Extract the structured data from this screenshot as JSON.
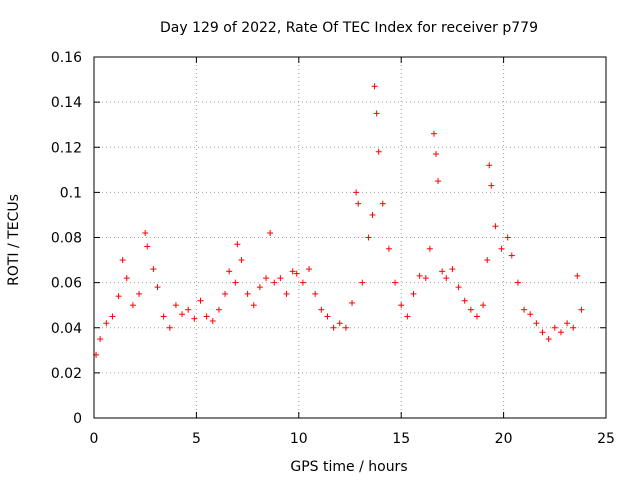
{
  "chart_data": {
    "type": "scatter",
    "title": "Day 129 of 2022, Rate Of TEC Index for receiver p779",
    "xlabel": "GPS time / hours",
    "ylabel": "ROTI / TECUs",
    "xlim": [
      0,
      25
    ],
    "ylim": [
      0,
      0.16
    ],
    "xticks": [
      0,
      5,
      10,
      15,
      20,
      25
    ],
    "xtick_labels": [
      "0",
      "5",
      "10",
      "15",
      "20",
      "25"
    ],
    "yticks": [
      0,
      0.02,
      0.04,
      0.06,
      0.08,
      0.1,
      0.12,
      0.14,
      0.16
    ],
    "ytick_labels": [
      "0",
      "0.02",
      "0.04",
      "0.06",
      "0.08",
      "0.1",
      "0.12",
      "0.14",
      "0.16"
    ],
    "grid": true,
    "marker": "+",
    "series_color": "#ff0000",
    "series": [
      {
        "name": "ROTI",
        "x": [
          0.1,
          0.3,
          0.6,
          0.9,
          1.2,
          1.4,
          1.6,
          1.9,
          2.2,
          2.5,
          2.6,
          2.9,
          3.1,
          3.4,
          3.7,
          4.0,
          4.3,
          4.6,
          4.9,
          5.2,
          5.5,
          5.8,
          6.1,
          6.4,
          6.6,
          6.9,
          7.0,
          7.2,
          7.5,
          7.8,
          8.1,
          8.4,
          8.6,
          8.8,
          9.1,
          9.4,
          9.7,
          9.9,
          10.2,
          10.5,
          10.8,
          11.1,
          11.4,
          11.7,
          12.0,
          12.3,
          12.6,
          12.8,
          12.9,
          13.1,
          13.4,
          13.6,
          13.7,
          13.8,
          13.9,
          14.1,
          14.4,
          14.7,
          15.0,
          15.3,
          15.6,
          15.9,
          16.2,
          16.4,
          16.6,
          16.7,
          16.8,
          17.0,
          17.2,
          17.5,
          17.8,
          18.1,
          18.4,
          18.7,
          19.0,
          19.2,
          19.3,
          19.4,
          19.6,
          19.9,
          20.2,
          20.4,
          20.7,
          21.0,
          21.3,
          21.6,
          21.9,
          22.2,
          22.5,
          22.8,
          23.1,
          23.4,
          23.6,
          23.8
        ],
        "y": [
          0.028,
          0.035,
          0.042,
          0.045,
          0.054,
          0.07,
          0.062,
          0.05,
          0.055,
          0.082,
          0.076,
          0.066,
          0.058,
          0.045,
          0.04,
          0.05,
          0.046,
          0.048,
          0.044,
          0.052,
          0.045,
          0.043,
          0.048,
          0.055,
          0.065,
          0.06,
          0.077,
          0.07,
          0.055,
          0.05,
          0.058,
          0.062,
          0.082,
          0.06,
          0.062,
          0.055,
          0.065,
          0.064,
          0.06,
          0.066,
          0.055,
          0.048,
          0.045,
          0.04,
          0.042,
          0.04,
          0.051,
          0.1,
          0.095,
          0.06,
          0.08,
          0.09,
          0.147,
          0.135,
          0.118,
          0.095,
          0.075,
          0.06,
          0.05,
          0.045,
          0.055,
          0.063,
          0.062,
          0.075,
          0.126,
          0.117,
          0.105,
          0.065,
          0.062,
          0.066,
          0.058,
          0.052,
          0.048,
          0.045,
          0.05,
          0.07,
          0.112,
          0.103,
          0.085,
          0.075,
          0.08,
          0.072,
          0.06,
          0.048,
          0.046,
          0.042,
          0.038,
          0.035,
          0.04,
          0.038,
          0.042,
          0.04,
          0.063,
          0.048
        ]
      }
    ]
  }
}
